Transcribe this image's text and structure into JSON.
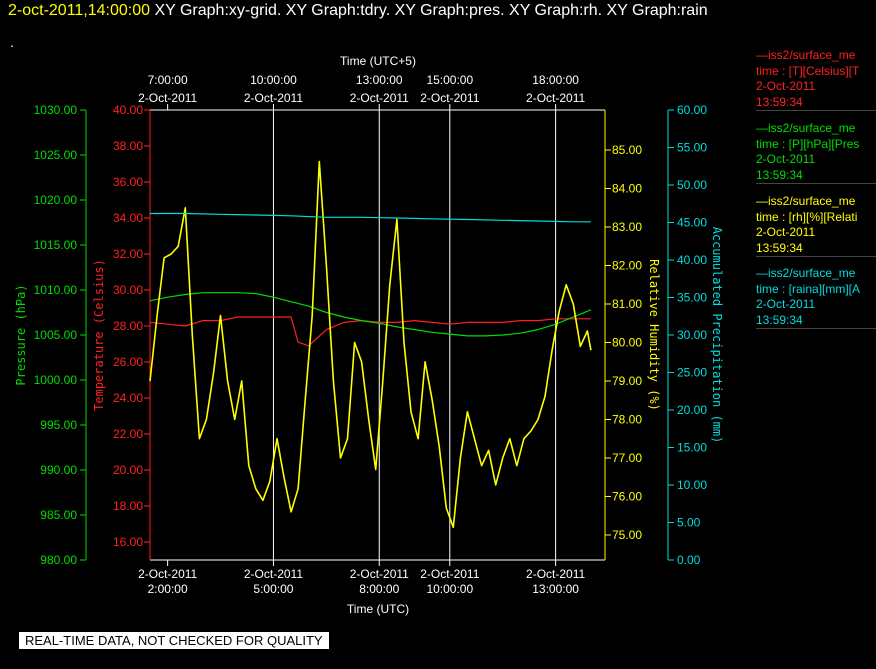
{
  "header": {
    "timestamp": "2-oct-2011,14:00:00",
    "graphs": "XY Graph:xy-grid.  XY Graph:tdry.  XY Graph:pres.  XY Graph:rh.  XY Graph:rain",
    "dot": "."
  },
  "footer": {
    "text": "REAL-TIME DATA, NOT CHECKED FOR QUALITY"
  },
  "colors": {
    "temperature": "#ff2020",
    "pressure": "#00dd00",
    "humidity": "#ffff00",
    "precip": "#00dddd",
    "axis": "#ffffff",
    "grid": "#ffffff"
  },
  "legend": [
    {
      "line1": "—iss2/surface_me",
      "line2": "time : [T][Celsius][T",
      "line3": "2-Oct-2011",
      "line4": "13:59:34",
      "color": "#ff2020"
    },
    {
      "line1": "—iss2/surface_me",
      "line2": "time : [P][hPa][Pres",
      "line3": "2-Oct-2011",
      "line4": "13:59:34",
      "color": "#00dd00"
    },
    {
      "line1": "—iss2/surface_me",
      "line2": "time : [rh][%][Relati",
      "line3": "2-Oct-2011",
      "line4": "13:59:34",
      "color": "#ffff00"
    },
    {
      "line1": "—iss2/surface_me",
      "line2": "time : [raina][mm][A",
      "line3": "2-Oct-2011",
      "line4": "13:59:34",
      "color": "#00dddd"
    }
  ],
  "chart_data": {
    "type": "line",
    "xlabel": "Time (UTC)",
    "x2label": "Time (UTC+5)",
    "xlim_hours_utc": [
      1.5,
      14.4
    ],
    "bottom_ticks": [
      {
        "hour": 2,
        "date": "2-Oct-2011",
        "time": "2:00:00"
      },
      {
        "hour": 5,
        "date": "2-Oct-2011",
        "time": "5:00:00"
      },
      {
        "hour": 8,
        "date": "2-Oct-2011",
        "time": "8:00:00"
      },
      {
        "hour": 10,
        "date": "2-Oct-2011",
        "time": "10:00:00"
      },
      {
        "hour": 13,
        "date": "2-Oct-2011",
        "time": "13:00:00"
      }
    ],
    "top_ticks": [
      {
        "hour": 2,
        "time": "7:00:00",
        "date": "2-Oct-2011"
      },
      {
        "hour": 5,
        "time": "10:00:00",
        "date": "2-Oct-2011"
      },
      {
        "hour": 8,
        "time": "13:00:00",
        "date": "2-Oct-2011"
      },
      {
        "hour": 10,
        "time": "15:00:00",
        "date": "2-Oct-2011"
      },
      {
        "hour": 13,
        "time": "18:00:00",
        "date": "2-Oct-2011"
      }
    ],
    "grid_hours": [
      5,
      8,
      10,
      13
    ],
    "axes": {
      "pressure": {
        "label": "Pressure (hPa)",
        "ylim": [
          980,
          1030
        ],
        "ticks": [
          "980.00",
          "985.00",
          "990.00",
          "995.00",
          "1000.00",
          "1005.00",
          "1010.00",
          "1015.00",
          "1020.00",
          "1025.00",
          "1030.00"
        ]
      },
      "temperature": {
        "label": "Temperature (Celsius)",
        "ylim": [
          15,
          40
        ],
        "ticks": [
          "16.00",
          "18.00",
          "20.00",
          "22.00",
          "24.00",
          "26.00",
          "28.00",
          "30.00",
          "32.00",
          "34.00",
          "36.00",
          "38.00",
          "40.00"
        ]
      },
      "humidity": {
        "label": "Relative Humidity (%)",
        "ylim": [
          74.35,
          86.04
        ],
        "ticks": [
          "75.00",
          "76.00",
          "77.00",
          "78.00",
          "79.00",
          "80.00",
          "81.00",
          "82.00",
          "83.00",
          "84.00",
          "85.00"
        ]
      },
      "precip": {
        "label": "Accumulated Precipitation (mm)",
        "ylim": [
          0,
          60
        ],
        "ticks": [
          "0.00",
          "5.00",
          "10.00",
          "15.00",
          "20.00",
          "25.00",
          "30.00",
          "35.00",
          "40.00",
          "45.00",
          "50.00",
          "55.00",
          "60.00"
        ]
      }
    },
    "series": [
      {
        "name": "temperature",
        "axis": "temperature",
        "x": [
          1.5,
          2.0,
          2.5,
          3.0,
          3.5,
          4.0,
          4.5,
          5.0,
          5.5,
          5.7,
          6.0,
          6.5,
          7.0,
          7.5,
          8.0,
          8.5,
          9.0,
          9.5,
          10.0,
          10.5,
          11.0,
          11.5,
          12.0,
          12.5,
          13.0,
          13.5,
          14.0
        ],
        "y": [
          28.2,
          28.1,
          28.0,
          28.3,
          28.3,
          28.5,
          28.5,
          28.5,
          28.5,
          27.1,
          26.9,
          27.8,
          28.2,
          28.3,
          28.2,
          28.2,
          28.3,
          28.2,
          28.1,
          28.2,
          28.2,
          28.2,
          28.3,
          28.3,
          28.4,
          28.4,
          28.4
        ]
      },
      {
        "name": "pressure",
        "axis": "pressure",
        "x": [
          1.5,
          2.0,
          2.5,
          3.0,
          3.5,
          4.0,
          4.5,
          5.0,
          5.5,
          6.0,
          6.5,
          7.0,
          7.5,
          8.0,
          8.5,
          9.0,
          9.5,
          10.0,
          10.5,
          11.0,
          11.5,
          12.0,
          12.5,
          13.0,
          13.5,
          14.0
        ],
        "y": [
          1008.8,
          1009.2,
          1009.5,
          1009.7,
          1009.7,
          1009.7,
          1009.6,
          1009.2,
          1008.7,
          1008.2,
          1007.5,
          1007.0,
          1006.6,
          1006.3,
          1005.9,
          1005.6,
          1005.3,
          1005.1,
          1004.9,
          1004.9,
          1005.0,
          1005.2,
          1005.6,
          1006.2,
          1007.0,
          1007.8
        ]
      },
      {
        "name": "humidity",
        "axis": "humidity",
        "x": [
          1.5,
          1.7,
          1.9,
          2.1,
          2.3,
          2.5,
          2.7,
          2.9,
          3.1,
          3.3,
          3.5,
          3.7,
          3.9,
          4.1,
          4.3,
          4.5,
          4.7,
          4.9,
          5.1,
          5.3,
          5.5,
          5.7,
          5.9,
          6.1,
          6.3,
          6.5,
          6.7,
          6.9,
          7.1,
          7.3,
          7.5,
          7.7,
          7.9,
          8.1,
          8.3,
          8.5,
          8.7,
          8.9,
          9.1,
          9.3,
          9.5,
          9.7,
          9.9,
          10.1,
          10.3,
          10.5,
          10.7,
          10.9,
          11.1,
          11.3,
          11.5,
          11.7,
          11.9,
          12.1,
          12.3,
          12.5,
          12.7,
          12.9,
          13.1,
          13.3,
          13.5,
          13.7,
          13.9,
          14.0
        ],
        "y": [
          79.0,
          80.7,
          82.2,
          82.3,
          82.5,
          83.5,
          80.2,
          77.5,
          78.0,
          79.2,
          80.7,
          79.0,
          78.0,
          79.0,
          76.8,
          76.2,
          75.9,
          76.4,
          77.5,
          76.5,
          75.6,
          76.2,
          78.5,
          80.7,
          84.7,
          82.0,
          79.0,
          77.0,
          77.5,
          80.0,
          79.5,
          78.0,
          76.7,
          79.0,
          81.5,
          83.2,
          80.0,
          78.2,
          77.5,
          79.5,
          78.5,
          77.3,
          75.7,
          75.2,
          77.0,
          78.2,
          77.5,
          76.8,
          77.2,
          76.3,
          77.0,
          77.5,
          76.8,
          77.5,
          77.7,
          78.0,
          78.6,
          79.8,
          80.8,
          81.5,
          81.0,
          79.9,
          80.3,
          79.8
        ]
      },
      {
        "name": "precip",
        "axis": "precip",
        "x": [
          1.5,
          2.5,
          3.5,
          4.5,
          5.5,
          6.5,
          7.5,
          8.5,
          9.5,
          10.5,
          11.5,
          12.5,
          13.5,
          14.0
        ],
        "y": [
          46.2,
          46.2,
          46.1,
          46.0,
          45.9,
          45.7,
          45.7,
          45.6,
          45.5,
          45.4,
          45.3,
          45.2,
          45.1,
          45.1
        ]
      }
    ]
  }
}
